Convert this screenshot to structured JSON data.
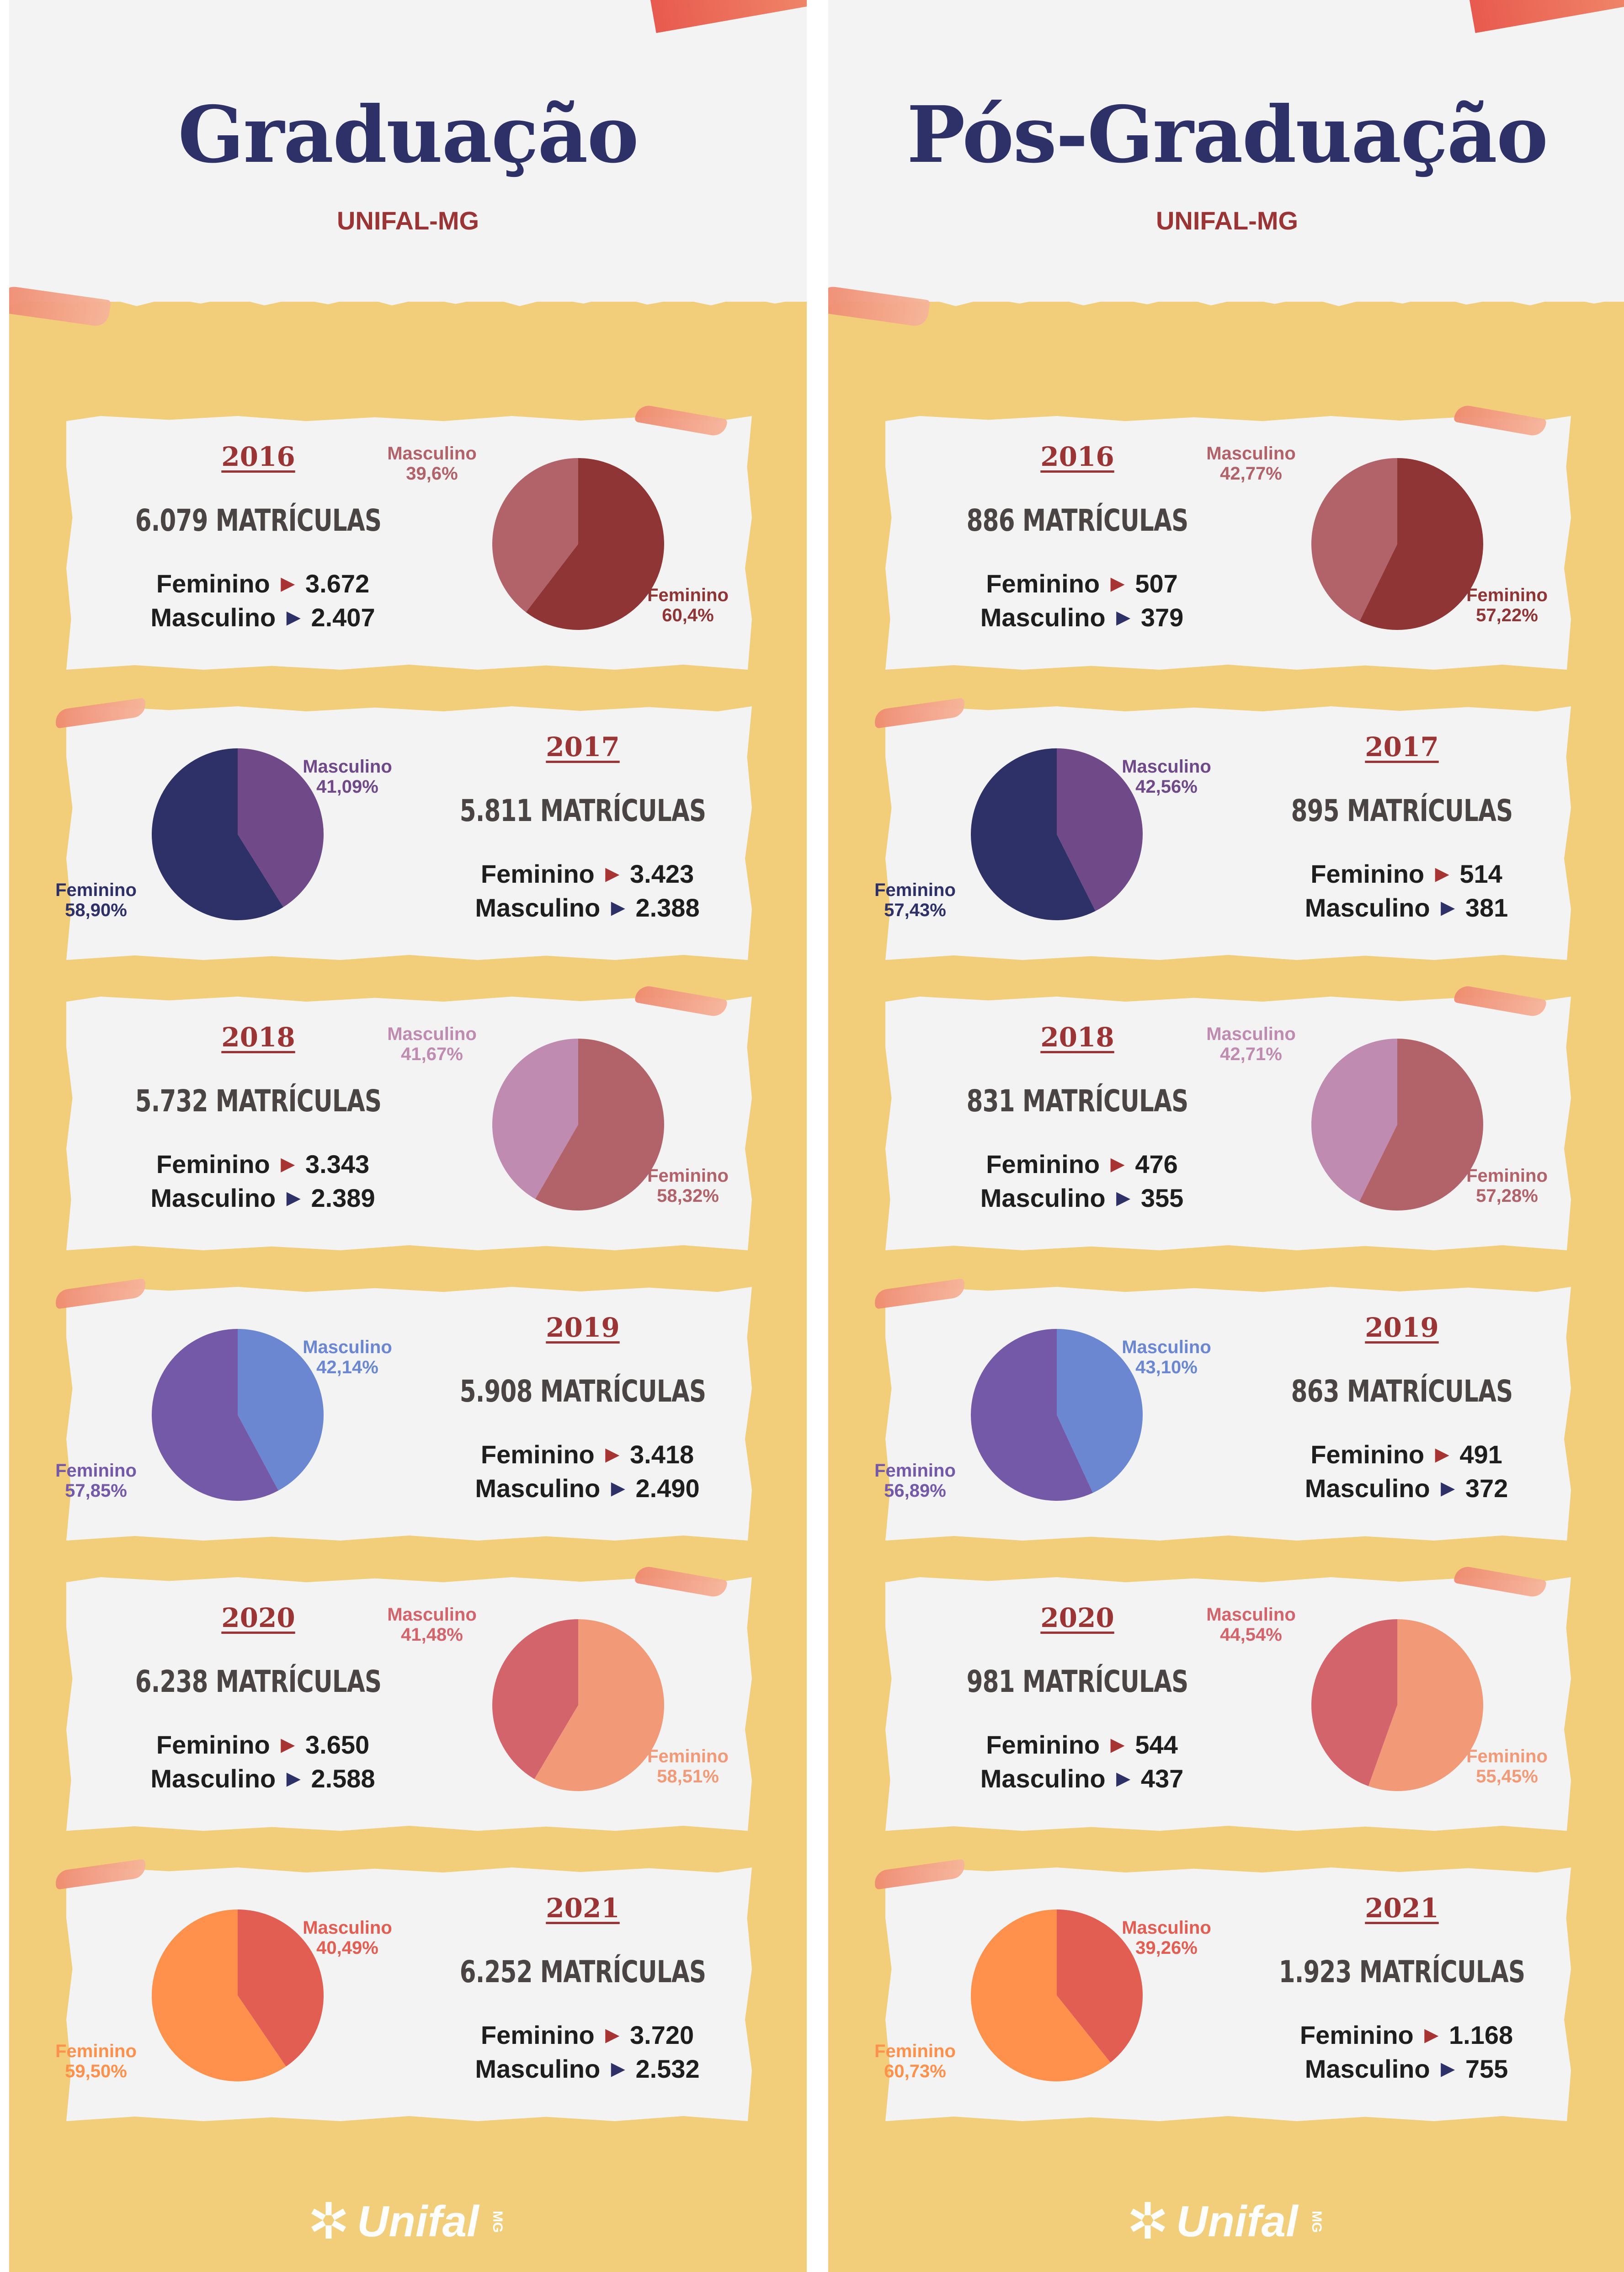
{
  "columns": [
    {
      "title": "Graduação",
      "subtitle": "UNIFAL-MG",
      "years": [
        {
          "year": "2016",
          "total": "6.079 MATRÍCULAS",
          "feminino_label": "Feminino",
          "feminino_count": "3.672",
          "masculino_label": "Masculino",
          "masculino_count": "2.407",
          "feminino_pct": "60,4%",
          "masculino_pct": "39,6%"
        },
        {
          "year": "2017",
          "total": "5.811 MATRÍCULAS",
          "feminino_label": "Feminino",
          "feminino_count": "3.423",
          "masculino_label": "Masculino",
          "masculino_count": "2.388",
          "feminino_pct": "58,90%",
          "masculino_pct": "41,09%"
        },
        {
          "year": "2018",
          "total": "5.732 MATRÍCULAS",
          "feminino_label": "Feminino",
          "feminino_count": "3.343",
          "masculino_label": "Masculino",
          "masculino_count": "2.389",
          "feminino_pct": "58,32%",
          "masculino_pct": "41,67%"
        },
        {
          "year": "2019",
          "total": "5.908 MATRÍCULAS",
          "feminino_label": "Feminino",
          "feminino_count": "3.418",
          "masculino_label": "Masculino",
          "masculino_count": "2.490",
          "feminino_pct": "57,85%",
          "masculino_pct": "42,14%"
        },
        {
          "year": "2020",
          "total": "6.238 MATRÍCULAS",
          "feminino_label": "Feminino",
          "feminino_count": "3.650",
          "masculino_label": "Masculino",
          "masculino_count": "2.588",
          "feminino_pct": "58,51%",
          "masculino_pct": "41,48%"
        },
        {
          "year": "2021",
          "total": "6.252 MATRÍCULAS",
          "feminino_label": "Feminino",
          "feminino_count": "3.720",
          "masculino_label": "Masculino",
          "masculino_count": "2.532",
          "feminino_pct": "59,50%",
          "masculino_pct": "40,49%"
        }
      ],
      "footer_logo": "Unifal"
    },
    {
      "title": "Pós-Graduação",
      "subtitle": "UNIFAL-MG",
      "years": [
        {
          "year": "2016",
          "total": "886 MATRÍCULAS",
          "feminino_label": "Feminino",
          "feminino_count": "507",
          "masculino_label": "Masculino",
          "masculino_count": "379",
          "feminino_pct": "57,22%",
          "masculino_pct": "42,77%"
        },
        {
          "year": "2017",
          "total": "895 MATRÍCULAS",
          "feminino_label": "Feminino",
          "feminino_count": "514",
          "masculino_label": "Masculino",
          "masculino_count": "381",
          "feminino_pct": "57,43%",
          "masculino_pct": "42,56%"
        },
        {
          "year": "2018",
          "total": "831 MATRÍCULAS",
          "feminino_label": "Feminino",
          "feminino_count": "476",
          "masculino_label": "Masculino",
          "masculino_count": "355",
          "feminino_pct": "57,28%",
          "masculino_pct": "42,71%"
        },
        {
          "year": "2019",
          "total": "863 MATRÍCULAS",
          "feminino_label": "Feminino",
          "feminino_count": "491",
          "masculino_label": "Masculino",
          "masculino_count": "372",
          "feminino_pct": "56,89%",
          "masculino_pct": "43,10%"
        },
        {
          "year": "2020",
          "total": "981 MATRÍCULAS",
          "feminino_label": "Feminino",
          "feminino_count": "544",
          "masculino_label": "Masculino",
          "masculino_count": "437",
          "feminino_pct": "55,45%",
          "masculino_pct": "44,54%"
        },
        {
          "year": "2021",
          "total": "1.923 MATRÍCULAS",
          "feminino_label": "Feminino",
          "feminino_count": "1.168",
          "masculino_label": "Masculino",
          "masculino_count": "755",
          "feminino_pct": "60,73%",
          "masculino_pct": "39,26%"
        }
      ],
      "footer_logo": "Unifal"
    }
  ],
  "palette": {
    "2016": {
      "feminino": "#8f3535",
      "masculino": "#b2636a"
    },
    "2017": {
      "feminino": "#2e3168",
      "masculino": "#704a88"
    },
    "2018": {
      "feminino": "#b2636a",
      "masculino": "#bf8bb1"
    },
    "2019": {
      "feminino": "#7359a8",
      "masculino": "#6c87d2"
    },
    "2020": {
      "feminino": "#f29a78",
      "masculino": "#d4646b"
    },
    "2021": {
      "feminino": "#ff914d",
      "masculino": "#e35e52"
    }
  },
  "chart_data": [
    {
      "type": "pie",
      "panel": "Graduação 2016",
      "labels": [
        "Feminino",
        "Masculino"
      ],
      "values": [
        60.4,
        39.6
      ]
    },
    {
      "type": "pie",
      "panel": "Graduação 2017",
      "labels": [
        "Feminino",
        "Masculino"
      ],
      "values": [
        58.9,
        41.09
      ]
    },
    {
      "type": "pie",
      "panel": "Graduação 2018",
      "labels": [
        "Feminino",
        "Masculino"
      ],
      "values": [
        58.32,
        41.67
      ]
    },
    {
      "type": "pie",
      "panel": "Graduação 2019",
      "labels": [
        "Feminino",
        "Masculino"
      ],
      "values": [
        57.85,
        42.14
      ]
    },
    {
      "type": "pie",
      "panel": "Graduação 2020",
      "labels": [
        "Feminino",
        "Masculino"
      ],
      "values": [
        58.51,
        41.48
      ]
    },
    {
      "type": "pie",
      "panel": "Graduação 2021",
      "labels": [
        "Feminino",
        "Masculino"
      ],
      "values": [
        59.5,
        40.49
      ]
    },
    {
      "type": "pie",
      "panel": "Pós-Graduação 2016",
      "labels": [
        "Feminino",
        "Masculino"
      ],
      "values": [
        57.22,
        42.77
      ]
    },
    {
      "type": "pie",
      "panel": "Pós-Graduação 2017",
      "labels": [
        "Feminino",
        "Masculino"
      ],
      "values": [
        57.43,
        42.56
      ]
    },
    {
      "type": "pie",
      "panel": "Pós-Graduação 2018",
      "labels": [
        "Feminino",
        "Masculino"
      ],
      "values": [
        57.28,
        42.71
      ]
    },
    {
      "type": "pie",
      "panel": "Pós-Graduação 2019",
      "labels": [
        "Feminino",
        "Masculino"
      ],
      "values": [
        56.89,
        43.1
      ]
    },
    {
      "type": "pie",
      "panel": "Pós-Graduação 2020",
      "labels": [
        "Feminino",
        "Masculino"
      ],
      "values": [
        55.45,
        44.54
      ]
    },
    {
      "type": "pie",
      "panel": "Pós-Graduação 2021",
      "labels": [
        "Feminino",
        "Masculino"
      ],
      "values": [
        60.73,
        39.26
      ]
    }
  ]
}
